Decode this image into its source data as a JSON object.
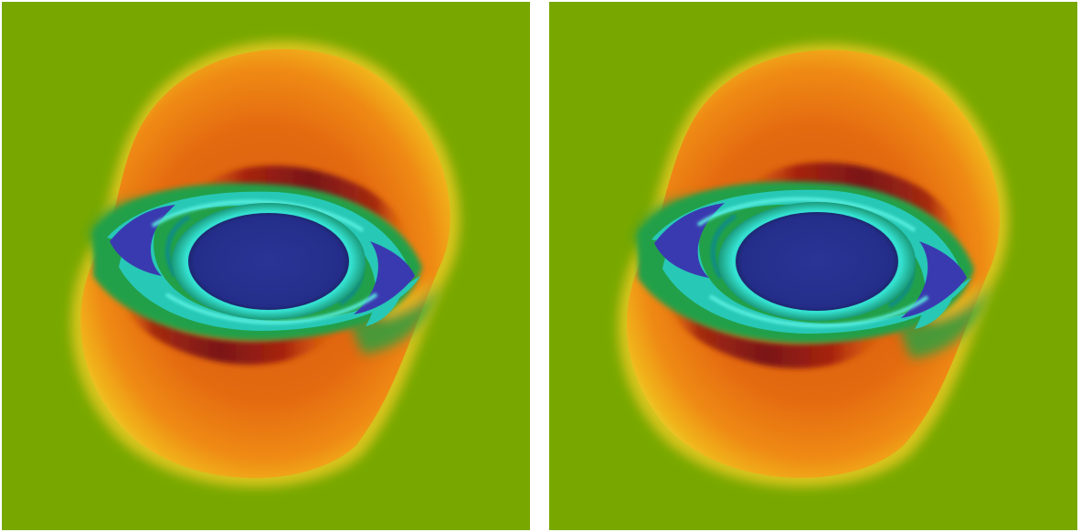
{
  "figure": {
    "panels": [
      {
        "id": "left"
      },
      {
        "id": "right"
      }
    ],
    "colors": {
      "background": "#78a800",
      "outer_orange": "#e46a10",
      "outer_red": "#cf4a0c",
      "yellow": "#e8c71a",
      "green": "#2aa63a",
      "dark_red": "#7a1616",
      "cyan": "#24d8c8",
      "teal": "#13a79a",
      "deep_blue": "#24308e",
      "violet_blue": "#3a3ab0"
    }
  }
}
